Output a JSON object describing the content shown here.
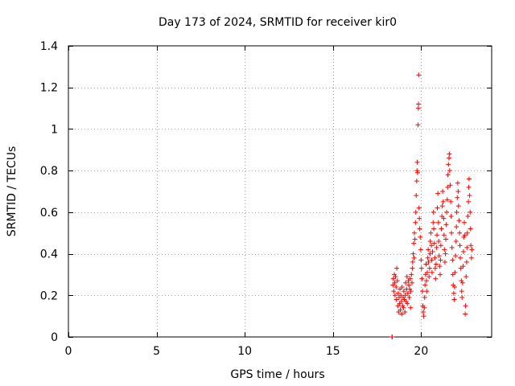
{
  "chart_data": {
    "type": "scatter",
    "title": "Day 173 of 2024, SRMTID for receiver kir0",
    "xlabel": "GPS time / hours",
    "ylabel": "SRMTID / TECUs",
    "xlim": [
      0,
      24
    ],
    "ylim": [
      0,
      1.4
    ],
    "x_ticks": [
      0,
      5,
      10,
      15,
      20
    ],
    "y_ticks": [
      0,
      0.2,
      0.4,
      0.6,
      0.8,
      1,
      1.2,
      1.4
    ],
    "x_tick_labels": [
      "0",
      "5",
      "10",
      "15",
      "20"
    ],
    "y_tick_labels": [
      "0",
      "0.2",
      "0.4",
      "0.6",
      "0.8",
      "1",
      "1.2",
      "1.4"
    ],
    "grid": true,
    "marker": "+",
    "marker_color": "#ff0000",
    "series": [
      {
        "name": "kir0",
        "points": [
          [
            18.35,
            0.0
          ],
          [
            18.36,
            0.0
          ],
          [
            18.4,
            0.25
          ],
          [
            18.42,
            0.28
          ],
          [
            18.45,
            0.22
          ],
          [
            18.48,
            0.3
          ],
          [
            18.5,
            0.26
          ],
          [
            18.52,
            0.2
          ],
          [
            18.55,
            0.29
          ],
          [
            18.58,
            0.24
          ],
          [
            18.6,
            0.18
          ],
          [
            18.62,
            0.33
          ],
          [
            18.65,
            0.27
          ],
          [
            18.68,
            0.15
          ],
          [
            18.7,
            0.21
          ],
          [
            18.72,
            0.12
          ],
          [
            18.75,
            0.19
          ],
          [
            18.78,
            0.16
          ],
          [
            18.8,
            0.23
          ],
          [
            18.82,
            0.13
          ],
          [
            18.85,
            0.2
          ],
          [
            18.88,
            0.17
          ],
          [
            18.9,
            0.11
          ],
          [
            18.92,
            0.24
          ],
          [
            18.95,
            0.15
          ],
          [
            18.98,
            0.19
          ],
          [
            19.0,
            0.14
          ],
          [
            19.02,
            0.22
          ],
          [
            19.05,
            0.18
          ],
          [
            19.08,
            0.12
          ],
          [
            19.1,
            0.2
          ],
          [
            19.12,
            0.26
          ],
          [
            19.15,
            0.17
          ],
          [
            19.18,
            0.23
          ],
          [
            19.2,
            0.29
          ],
          [
            19.22,
            0.16
          ],
          [
            19.25,
            0.21
          ],
          [
            19.28,
            0.27
          ],
          [
            19.3,
            0.25
          ],
          [
            19.32,
            0.19
          ],
          [
            19.35,
            0.23
          ],
          [
            19.38,
            0.28
          ],
          [
            19.4,
            0.14
          ],
          [
            19.42,
            0.22
          ],
          [
            19.45,
            0.3
          ],
          [
            19.48,
            0.26
          ],
          [
            19.5,
            0.33
          ],
          [
            19.52,
            0.36
          ],
          [
            19.55,
            0.4
          ],
          [
            19.58,
            0.45
          ],
          [
            19.6,
            0.38
          ],
          [
            19.62,
            0.5
          ],
          [
            19.65,
            0.47
          ],
          [
            19.68,
            0.55
          ],
          [
            19.7,
            0.6
          ],
          [
            19.72,
            0.68
          ],
          [
            19.75,
            0.75
          ],
          [
            19.77,
            0.8
          ],
          [
            19.78,
            0.84
          ],
          [
            19.8,
            0.79
          ],
          [
            19.82,
            1.02
          ],
          [
            19.84,
            1.1
          ],
          [
            19.85,
            1.12
          ],
          [
            19.86,
            1.26
          ],
          [
            19.88,
            0.62
          ],
          [
            19.9,
            0.57
          ],
          [
            19.92,
            0.52
          ],
          [
            19.95,
            0.48
          ],
          [
            19.98,
            0.42
          ],
          [
            20.0,
            0.37
          ],
          [
            20.02,
            0.33
          ],
          [
            20.05,
            0.28
          ],
          [
            20.08,
            0.22
          ],
          [
            20.1,
            0.15
          ],
          [
            20.12,
            0.12
          ],
          [
            20.15,
            0.1
          ],
          [
            20.18,
            0.14
          ],
          [
            20.2,
            0.19
          ],
          [
            20.22,
            0.25
          ],
          [
            20.25,
            0.3
          ],
          [
            20.28,
            0.35
          ],
          [
            20.3,
            0.27
          ],
          [
            20.32,
            0.22
          ],
          [
            20.35,
            0.31
          ],
          [
            20.38,
            0.38
          ],
          [
            20.4,
            0.42
          ],
          [
            20.42,
            0.36
          ],
          [
            20.45,
            0.29
          ],
          [
            20.48,
            0.33
          ],
          [
            20.5,
            0.4
          ],
          [
            20.52,
            0.46
          ],
          [
            20.55,
            0.5
          ],
          [
            20.58,
            0.44
          ],
          [
            20.6,
            0.37
          ],
          [
            20.62,
            0.31
          ],
          [
            20.65,
            0.41
          ],
          [
            20.68,
            0.55
          ],
          [
            20.7,
            0.6
          ],
          [
            20.72,
            0.52
          ],
          [
            20.75,
            0.45
          ],
          [
            20.78,
            0.38
          ],
          [
            20.8,
            0.33
          ],
          [
            20.82,
            0.28
          ],
          [
            20.85,
            0.35
          ],
          [
            20.88,
            0.43
          ],
          [
            20.9,
            0.49
          ],
          [
            20.92,
            0.62
          ],
          [
            20.95,
            0.69
          ],
          [
            20.98,
            0.55
          ],
          [
            21.0,
            0.46
          ],
          [
            21.02,
            0.39
          ],
          [
            21.05,
            0.34
          ],
          [
            21.08,
            0.3
          ],
          [
            21.1,
            0.37
          ],
          [
            21.12,
            0.44
          ],
          [
            21.15,
            0.52
          ],
          [
            21.18,
            0.58
          ],
          [
            21.2,
            0.63
          ],
          [
            21.22,
            0.7
          ],
          [
            21.25,
            0.65
          ],
          [
            21.28,
            0.57
          ],
          [
            21.3,
            0.49
          ],
          [
            21.32,
            0.42
          ],
          [
            21.35,
            0.36
          ],
          [
            21.38,
            0.4
          ],
          [
            21.4,
            0.47
          ],
          [
            21.42,
            0.54
          ],
          [
            21.45,
            0.6
          ],
          [
            21.48,
            0.66
          ],
          [
            21.5,
            0.72
          ],
          [
            21.52,
            0.78
          ],
          [
            21.55,
            0.83
          ],
          [
            21.58,
            0.86
          ],
          [
            21.6,
            0.88
          ],
          [
            21.62,
            0.8
          ],
          [
            21.65,
            0.73
          ],
          [
            21.68,
            0.65
          ],
          [
            21.7,
            0.58
          ],
          [
            21.72,
            0.5
          ],
          [
            21.75,
            0.43
          ],
          [
            21.78,
            0.37
          ],
          [
            21.8,
            0.3
          ],
          [
            21.82,
            0.25
          ],
          [
            21.85,
            0.21
          ],
          [
            21.88,
            0.18
          ],
          [
            21.9,
            0.24
          ],
          [
            21.92,
            0.31
          ],
          [
            21.95,
            0.39
          ],
          [
            21.98,
            0.46
          ],
          [
            22.0,
            0.53
          ],
          [
            22.02,
            0.6
          ],
          [
            22.05,
            0.67
          ],
          [
            22.08,
            0.74
          ],
          [
            22.1,
            0.7
          ],
          [
            22.12,
            0.63
          ],
          [
            22.15,
            0.56
          ],
          [
            22.18,
            0.5
          ],
          [
            22.2,
            0.44
          ],
          [
            22.22,
            0.38
          ],
          [
            22.25,
            0.33
          ],
          [
            22.28,
            0.27
          ],
          [
            22.3,
            0.22
          ],
          [
            22.32,
            0.19
          ],
          [
            22.35,
            0.26
          ],
          [
            22.38,
            0.34
          ],
          [
            22.4,
            0.41
          ],
          [
            22.42,
            0.48
          ],
          [
            22.45,
            0.55
          ],
          [
            22.48,
            0.49
          ],
          [
            22.5,
            0.11
          ],
          [
            22.52,
            0.15
          ],
          [
            22.55,
            0.29
          ],
          [
            22.58,
            0.36
          ],
          [
            22.6,
            0.43
          ],
          [
            22.62,
            0.5
          ],
          [
            22.65,
            0.58
          ],
          [
            22.68,
            0.65
          ],
          [
            22.7,
            0.72
          ],
          [
            22.72,
            0.76
          ],
          [
            22.75,
            0.68
          ],
          [
            22.78,
            0.6
          ],
          [
            22.8,
            0.52
          ],
          [
            22.82,
            0.44
          ],
          [
            22.85,
            0.38
          ],
          [
            22.88,
            0.42
          ]
        ]
      }
    ]
  }
}
